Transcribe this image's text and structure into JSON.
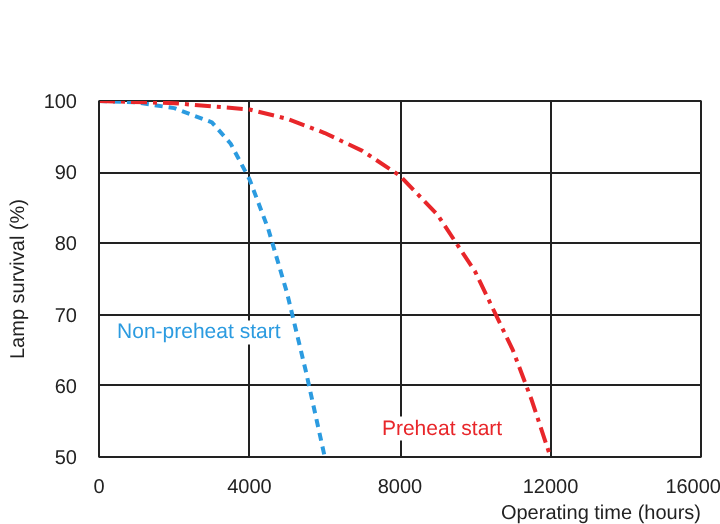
{
  "chart_data": {
    "type": "line",
    "xlabel": "Operating time (hours)",
    "ylabel": "Lamp survival (%)",
    "xlim": [
      0,
      16000
    ],
    "ylim": [
      50,
      100
    ],
    "xticks": [
      0,
      4000,
      8000,
      12000,
      16000
    ],
    "yticks": [
      50,
      60,
      70,
      80,
      90,
      100
    ],
    "grid": true,
    "marker": "none",
    "series": [
      {
        "name": "Non-preheat start",
        "color": "#2b9be0",
        "line_style": "dashed",
        "x": [
          0,
          1000,
          2000,
          3000,
          3500,
          4000,
          4500,
          5000,
          5500,
          6000
        ],
        "values": [
          100,
          99.8,
          99,
          97,
          94,
          89,
          82,
          73,
          62,
          50
        ]
      },
      {
        "name": "Preheat start",
        "color": "#e8262a",
        "line_style": "dashdot",
        "x": [
          0,
          2000,
          4000,
          5000,
          6000,
          7000,
          8000,
          9000,
          10000,
          11000,
          11500,
          12000
        ],
        "values": [
          100,
          99.7,
          98.8,
          97.5,
          95.5,
          93,
          89.5,
          84,
          76,
          65,
          58,
          50
        ]
      }
    ]
  }
}
